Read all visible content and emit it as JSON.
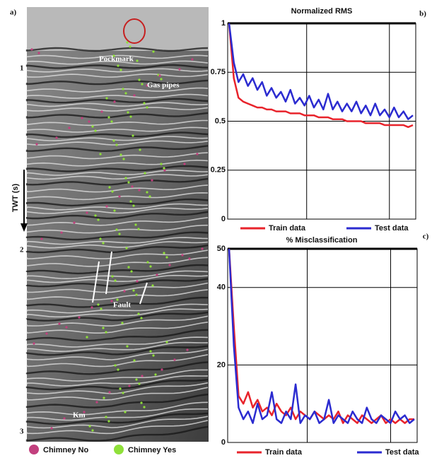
{
  "seismic_panel": {
    "panel_label": "a)",
    "axis_label": "TWT (s)",
    "yticks": [
      1,
      2,
      3
    ],
    "annotations": [
      "Pockmark",
      "Gas pipes",
      "Fault",
      "Km"
    ],
    "legend": [
      {
        "name": "Chimney No",
        "color": "#c2407e"
      },
      {
        "name": "Chimney Yes",
        "color": "#8fe03a"
      }
    ]
  },
  "chart_data": [
    {
      "type": "line",
      "title": "Normalized RMS",
      "panel_label": "b)",
      "ylim": [
        0,
        1
      ],
      "yticks": [
        0,
        0.25,
        0.5,
        0.75,
        1
      ],
      "grid": true,
      "series": [
        {
          "name": "Train data",
          "color": "#e8232b",
          "values": [
            1,
            0.72,
            0.62,
            0.6,
            0.59,
            0.58,
            0.57,
            0.57,
            0.56,
            0.56,
            0.55,
            0.55,
            0.55,
            0.54,
            0.54,
            0.54,
            0.53,
            0.53,
            0.53,
            0.52,
            0.52,
            0.52,
            0.51,
            0.51,
            0.51,
            0.5,
            0.5,
            0.5,
            0.5,
            0.49,
            0.49,
            0.49,
            0.49,
            0.48,
            0.48,
            0.48,
            0.48,
            0.48,
            0.47,
            0.48
          ]
        },
        {
          "name": "Test data",
          "color": "#2b2bd0",
          "values": [
            1,
            0.8,
            0.7,
            0.74,
            0.68,
            0.72,
            0.66,
            0.7,
            0.63,
            0.67,
            0.62,
            0.65,
            0.6,
            0.66,
            0.59,
            0.62,
            0.58,
            0.63,
            0.57,
            0.61,
            0.56,
            0.64,
            0.56,
            0.6,
            0.55,
            0.59,
            0.55,
            0.6,
            0.54,
            0.58,
            0.53,
            0.59,
            0.53,
            0.56,
            0.52,
            0.57,
            0.52,
            0.55,
            0.51,
            0.53
          ]
        }
      ]
    },
    {
      "type": "line",
      "title": "% Misclassification",
      "panel_label": "c)",
      "ylim": [
        0,
        50
      ],
      "yticks": [
        0,
        20,
        40,
        50
      ],
      "grid": true,
      "series": [
        {
          "name": "Train data",
          "color": "#e8232b",
          "values": [
            50,
            30,
            12,
            10,
            13,
            9,
            11,
            8,
            9,
            7,
            10,
            8,
            7,
            9,
            6,
            8,
            7,
            6,
            8,
            7,
            6,
            7,
            6,
            8,
            5,
            7,
            6,
            5,
            7,
            6,
            5,
            6,
            7,
            5,
            6,
            5,
            6,
            5,
            6,
            6
          ]
        },
        {
          "name": "Test data",
          "color": "#2b2bd0",
          "values": [
            50,
            25,
            9,
            6,
            8,
            5,
            10,
            6,
            7,
            13,
            6,
            5,
            8,
            6,
            15,
            5,
            7,
            6,
            8,
            5,
            6,
            11,
            5,
            7,
            6,
            5,
            8,
            6,
            5,
            9,
            6,
            5,
            7,
            6,
            5,
            8,
            6,
            7,
            5,
            6
          ]
        }
      ]
    }
  ]
}
